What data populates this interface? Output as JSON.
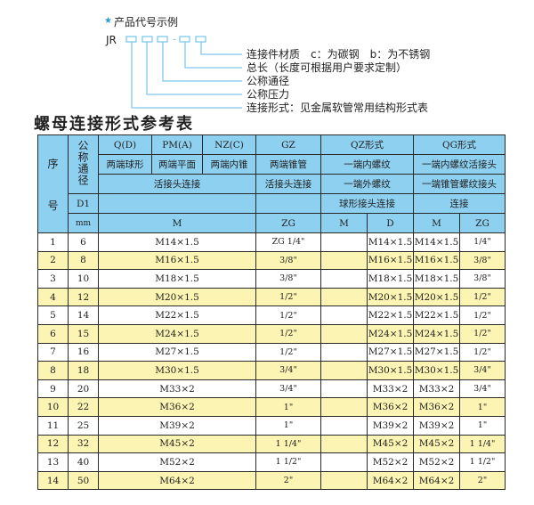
{
  "diagram": {
    "heading": "产品代号示例",
    "code_prefix": "JR",
    "dash": "-",
    "labels": [
      "连接件材质　c：为碳钢　b：为不锈钢",
      "总长（长度可根据用户要求定制）",
      "公称通径",
      "公称压力",
      "连接形式：见金属软管常用结构形式表"
    ],
    "star_color": "#2a9ad8",
    "line_color": "#7ec8ec"
  },
  "table_title": "螺母连接形式参考表",
  "header": {
    "seq": "序",
    "seq2": "号",
    "dn": "公称通径",
    "d1": "D1",
    "mm": "mm",
    "types": [
      "Q(D)",
      "PM(A)",
      "NZ(C)",
      "GZ",
      "QZ形式",
      "QG形式"
    ],
    "row2": [
      "两端球形",
      "两端平面",
      "两端内锥",
      "两端锥管",
      "一端内螺纹",
      "一端内螺纹活接头"
    ],
    "row3": [
      "活接头连接",
      "活接头连接",
      "一端外螺纹",
      "一端锥管螺纹接头"
    ],
    "row4": [
      "",
      "",
      "球形接头连接",
      "连接"
    ],
    "row5": [
      "M",
      "ZG",
      "M",
      "D",
      "M",
      "ZG"
    ]
  },
  "colors": {
    "header_bg": "#8ed0f0",
    "alt_row_bg": "#fcf4b2",
    "border": "#2a2a2a"
  },
  "rows": [
    {
      "no": "1",
      "dn": "6",
      "m": "M14×1.5",
      "gz": "ZG 1/4\"",
      "qz_m": "",
      "qz_d": "M14×1.5",
      "qg_m": "M14×1.5",
      "qg_zg": "1/4\""
    },
    {
      "no": "2",
      "dn": "8",
      "m": "M16×1.5",
      "gz": "3/8\"",
      "qz_m": "",
      "qz_d": "M16×1.5",
      "qg_m": "M16×1.5",
      "qg_zg": "3/8\""
    },
    {
      "no": "3",
      "dn": "10",
      "m": "M18×1.5",
      "gz": "3/8\"",
      "qz_m": "",
      "qz_d": "M18×1.5",
      "qg_m": "M18×1.5",
      "qg_zg": "3/8\""
    },
    {
      "no": "4",
      "dn": "12",
      "m": "M20×1.5",
      "gz": "1/2\"",
      "qz_m": "",
      "qz_d": "M20×1.5",
      "qg_m": "M20×1.5",
      "qg_zg": "1/2\""
    },
    {
      "no": "5",
      "dn": "14",
      "m": "M22×1.5",
      "gz": "1/2\"",
      "qz_m": "",
      "qz_d": "M22×1.5",
      "qg_m": "M22×1.5",
      "qg_zg": "1/2\""
    },
    {
      "no": "6",
      "dn": "15",
      "m": "M24×1.5",
      "gz": "1/2\"",
      "qz_m": "",
      "qz_d": "M24×1.5",
      "qg_m": "M24×1.5",
      "qg_zg": "1/2\""
    },
    {
      "no": "7",
      "dn": "16",
      "m": "M27×1.5",
      "gz": "1/2\"",
      "qz_m": "",
      "qz_d": "M27×1.5",
      "qg_m": "M27×1.5",
      "qg_zg": "1/2\""
    },
    {
      "no": "8",
      "dn": "18",
      "m": "M30×1.5",
      "gz": "3/4\"",
      "qz_m": "",
      "qz_d": "M30×1.5",
      "qg_m": "M30×1.5",
      "qg_zg": "3/4\""
    },
    {
      "no": "9",
      "dn": "20",
      "m": "M33×2",
      "gz": "3/4\"",
      "qz_m": "",
      "qz_d": "M33×2",
      "qg_m": "M33×2",
      "qg_zg": "3/4\""
    },
    {
      "no": "10",
      "dn": "22",
      "m": "M36×2",
      "gz": "1\"",
      "qz_m": "",
      "qz_d": "M36×2",
      "qg_m": "M36×2",
      "qg_zg": "1\""
    },
    {
      "no": "11",
      "dn": "25",
      "m": "M39×2",
      "gz": "1\"",
      "qz_m": "",
      "qz_d": "M39×2",
      "qg_m": "M39×2",
      "qg_zg": "1\""
    },
    {
      "no": "12",
      "dn": "32",
      "m": "M45×2",
      "gz": "1 1/4\"",
      "qz_m": "",
      "qz_d": "M45×2",
      "qg_m": "M45×2",
      "qg_zg": "1 1/4\""
    },
    {
      "no": "13",
      "dn": "40",
      "m": "M52×2",
      "gz": "1 1/2\"",
      "qz_m": "",
      "qz_d": "M52×2",
      "qg_m": "M52×2",
      "qg_zg": "1 1/2\""
    },
    {
      "no": "14",
      "dn": "50",
      "m": "M64×2",
      "gz": "2\"",
      "qz_m": "",
      "qz_d": "M64×2",
      "qg_m": "M64×2",
      "qg_zg": "2\""
    }
  ]
}
